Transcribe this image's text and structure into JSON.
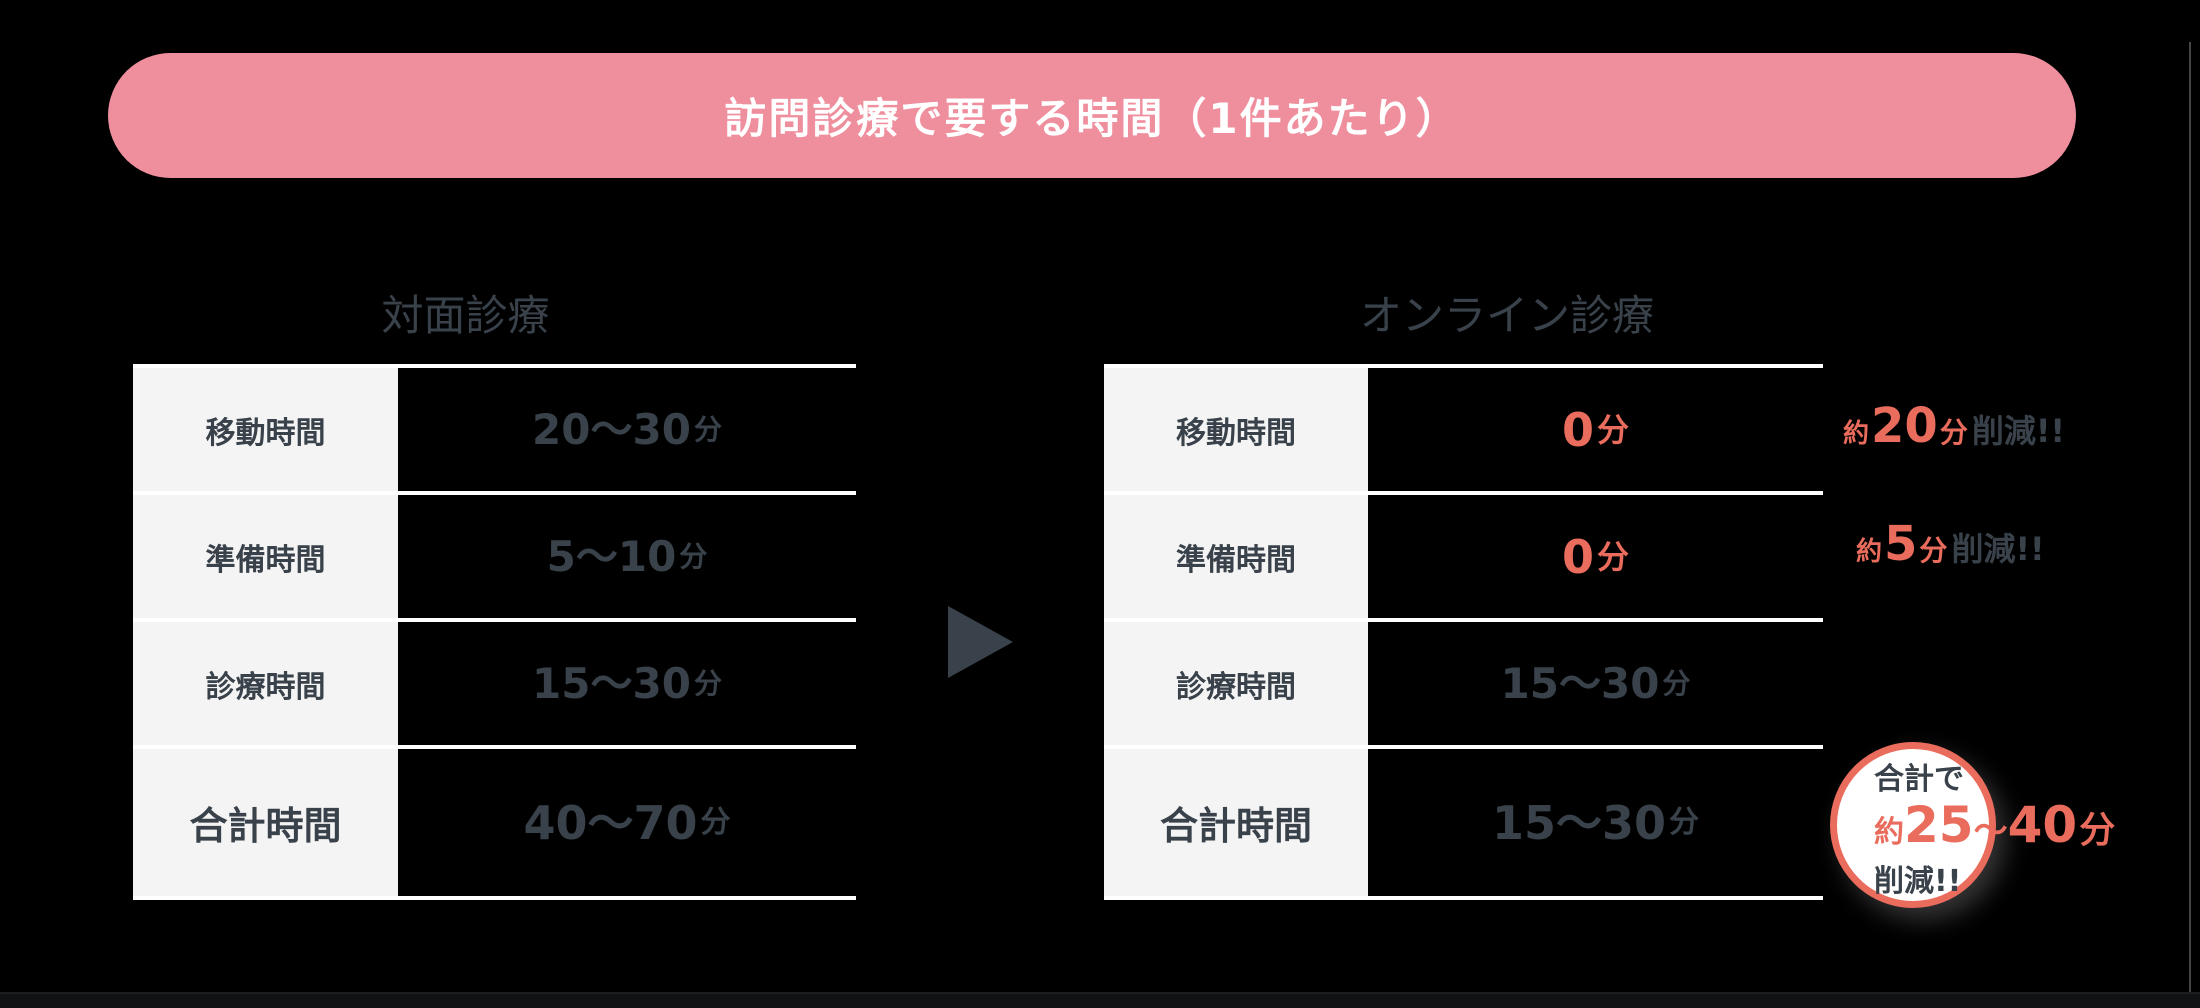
{
  "banner": {
    "title": "訪問診療で要する時間（1件あたり）"
  },
  "colors": {
    "canvas_bg": "#000000",
    "banner_bg": "#EF8F9E",
    "banner_text": "#FFFFFF",
    "accent_coral": "#E96C5C",
    "text_dark_slate": "#39424A",
    "label_cell_bg": "#F4F4F4",
    "separator_line": "#FFFFFF",
    "badge_bg": "#FFFFFF"
  },
  "arrow_icon": "right-triangle",
  "left_table": {
    "title": "対面診療",
    "rows": [
      {
        "label": "移動時間",
        "value_num": "20〜30",
        "value_unit": "分"
      },
      {
        "label": "準備時間",
        "value_num": "5〜10",
        "value_unit": "分"
      },
      {
        "label": "診療時間",
        "value_num": "15〜30",
        "value_unit": "分"
      },
      {
        "label": "合計時間",
        "value_num": "40〜70",
        "value_unit": "分"
      }
    ]
  },
  "right_table": {
    "title": "オンライン診療",
    "rows": [
      {
        "label": "移動時間",
        "value_num": "0",
        "value_unit": "分"
      },
      {
        "label": "準備時間",
        "value_num": "0",
        "value_unit": "分"
      },
      {
        "label": "診療時間",
        "value_num": "15〜30",
        "value_unit": "分"
      },
      {
        "label": "合計時間",
        "value_num": "15〜30",
        "value_unit": "分"
      }
    ]
  },
  "annotations": [
    {
      "prefix": "約",
      "num": "20",
      "unit": "分",
      "suffix": "削減!!"
    },
    {
      "prefix": "約",
      "num": "5",
      "unit": "分",
      "suffix": "削減!!"
    }
  ],
  "badge": {
    "line1": "合計で",
    "prefix": "約",
    "num1": "25",
    "tilde": "〜",
    "num2": "40",
    "unit": "分",
    "line3": "削減!!"
  }
}
